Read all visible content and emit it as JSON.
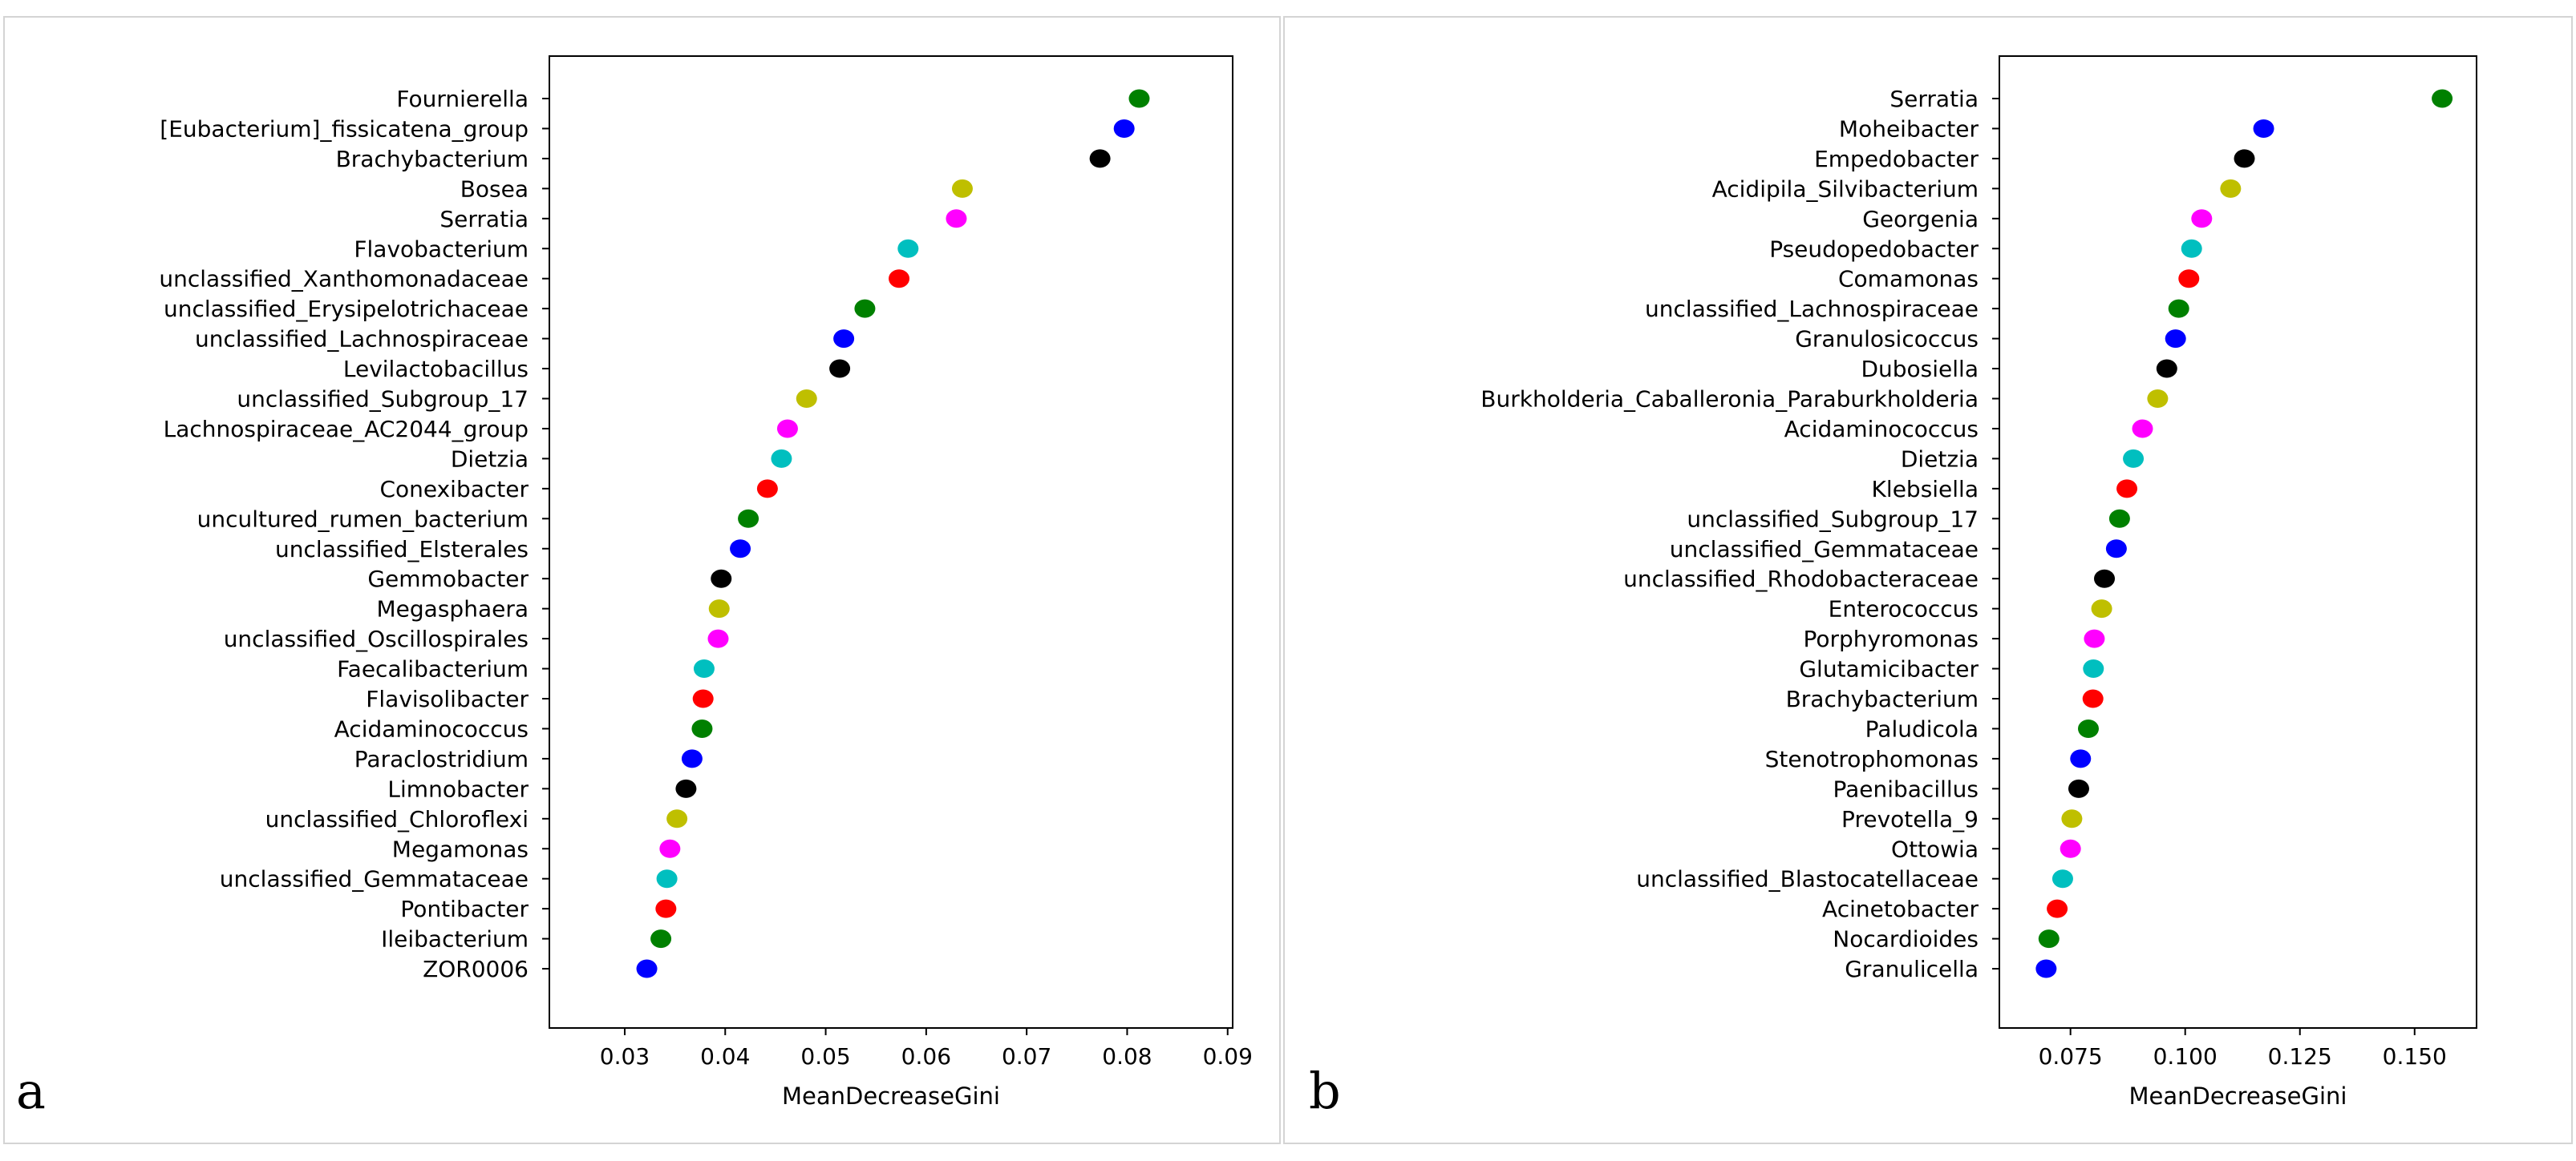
{
  "chart_data": [
    {
      "panel": "a",
      "type": "scatter",
      "xlabel": "MeanDecreaseGini",
      "ylabel": "",
      "xlim": [
        0.0225,
        0.0905
      ],
      "xticks": [
        "0.03",
        "0.04",
        "0.05",
        "0.06",
        "0.07",
        "0.08",
        "0.09"
      ],
      "xtick_values": [
        0.03,
        0.04,
        0.05,
        0.06,
        0.07,
        0.08,
        0.09
      ],
      "grid": false,
      "categories": [
        "Fournierella",
        "[Eubacterium]_fissicatena_group",
        "Brachybacterium",
        "Bosea",
        "Serratia",
        "Flavobacterium",
        "unclassified_Xanthomonadaceae",
        "unclassified_Erysipelotrichaceae",
        "unclassified_Lachnospiraceae",
        "Levilactobacillus",
        "unclassified_Subgroup_17",
        "Lachnospiraceae_AC2044_group",
        "Dietzia",
        "Conexibacter",
        "uncultured_rumen_bacterium",
        "unclassified_Elsterales",
        "Gemmobacter",
        "Megasphaera",
        "unclassified_Oscillospirales",
        "Faecalibacterium",
        "Flavisolibacter",
        "Acidaminococcus",
        "Paraclostridium",
        "Limnobacter",
        "unclassified_Chloroflexi",
        "Megamonas",
        "unclassified_Gemmataceae",
        "Pontibacter",
        "Ileibacterium",
        "ZOR0006"
      ],
      "values": [
        0.0812,
        0.0797,
        0.0773,
        0.0636,
        0.063,
        0.0582,
        0.0573,
        0.0539,
        0.0518,
        0.0514,
        0.0481,
        0.0462,
        0.0456,
        0.0442,
        0.0423,
        0.0415,
        0.0396,
        0.0394,
        0.0393,
        0.0379,
        0.0378,
        0.0377,
        0.0367,
        0.0361,
        0.0352,
        0.0345,
        0.0342,
        0.0341,
        0.0336,
        0.0322
      ]
    },
    {
      "panel": "b",
      "type": "scatter",
      "xlabel": "MeanDecreaseGini",
      "ylabel": "",
      "xlim": [
        0.0595,
        0.1635
      ],
      "xticks": [
        "0.075",
        "0.100",
        "0.125",
        "0.150"
      ],
      "xtick_values": [
        0.075,
        0.1,
        0.125,
        0.15
      ],
      "grid": false,
      "categories": [
        "Serratia",
        "Moheibacter",
        "Empedobacter",
        "Acidipila_Silvibacterium",
        "Georgenia",
        "Pseudopedobacter",
        "Comamonas",
        "unclassified_Lachnospiraceae",
        "Granulosicoccus",
        "Dubosiella",
        "Burkholderia_Caballeronia_Paraburkholderia",
        "Acidaminococcus",
        "Dietzia",
        "Klebsiella",
        "unclassified_Subgroup_17",
        "unclassified_Gemmataceae",
        "unclassified_Rhodobacteraceae",
        "Enterococcus",
        "Porphyromonas",
        "Glutamicibacter",
        "Brachybacterium",
        "Paludicola",
        "Stenotrophomonas",
        "Paenibacillus",
        "Prevotella_9",
        "Ottowia",
        "unclassified_Blastocatellaceae",
        "Acinetobacter",
        "Nocardioides",
        "Granulicella"
      ],
      "values": [
        0.156,
        0.1171,
        0.1129,
        0.1099,
        0.1036,
        0.1014,
        0.1008,
        0.0986,
        0.0979,
        0.096,
        0.094,
        0.0907,
        0.0887,
        0.0873,
        0.0857,
        0.085,
        0.0824,
        0.0818,
        0.0802,
        0.08,
        0.0799,
        0.0789,
        0.0772,
        0.0768,
        0.0753,
        0.075,
        0.0733,
        0.0721,
        0.0703,
        0.0697
      ]
    }
  ],
  "dot_colors": [
    "#008000",
    "#0000ff",
    "#000000",
    "#bfbf00",
    "#ff00ff",
    "#00bfbf",
    "#ff0000"
  ],
  "panel_labels": [
    "a",
    "b"
  ]
}
